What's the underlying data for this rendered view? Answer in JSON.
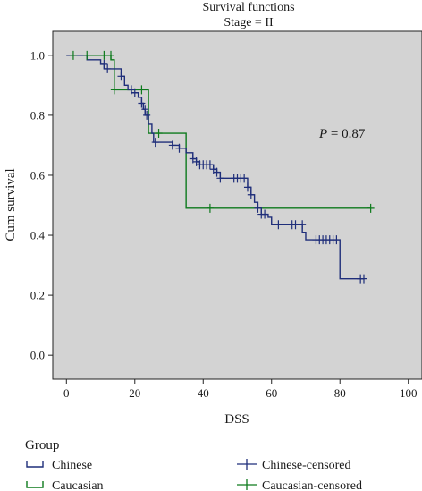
{
  "chart_data": {
    "type": "line",
    "title": "Survival functions",
    "subtitle": "Stage = II",
    "xlabel": "DSS",
    "ylabel": "Cum survival",
    "xlim": [
      -4,
      104
    ],
    "ylim": [
      -0.08,
      1.08
    ],
    "xticks": [
      0,
      20,
      40,
      60,
      80,
      100
    ],
    "yticks": [
      0.0,
      0.2,
      0.4,
      0.6,
      0.8,
      1.0
    ],
    "xtick_labels": [
      "0",
      "20",
      "40",
      "60",
      "80",
      "100"
    ],
    "ytick_labels": [
      "0.0",
      "0.2",
      "0.4",
      "0.6",
      "0.8",
      "1.0"
    ],
    "annotation": {
      "prefix": "P",
      "text": " = 0.87",
      "x": 80,
      "y": 0.87
    },
    "grid": false,
    "background": "#d3d3d3",
    "series": [
      {
        "name": "Chinese",
        "color": "#1f2e7a",
        "steps": [
          [
            0,
            1.0
          ],
          [
            6,
            0.985
          ],
          [
            10,
            0.97
          ],
          [
            11,
            0.955
          ],
          [
            16,
            0.93
          ],
          [
            17,
            0.9
          ],
          [
            18,
            0.885
          ],
          [
            19,
            0.875
          ],
          [
            21,
            0.86
          ],
          [
            22,
            0.84
          ],
          [
            22.5,
            0.82
          ],
          [
            23,
            0.8
          ],
          [
            24,
            0.77
          ],
          [
            25,
            0.74
          ],
          [
            25.5,
            0.71
          ],
          [
            31,
            0.7
          ],
          [
            33,
            0.69
          ],
          [
            35,
            0.675
          ],
          [
            37,
            0.655
          ],
          [
            38,
            0.645
          ],
          [
            39,
            0.635
          ],
          [
            43,
            0.62
          ],
          [
            44,
            0.61
          ],
          [
            45,
            0.59
          ],
          [
            53,
            0.56
          ],
          [
            54,
            0.535
          ],
          [
            55,
            0.51
          ],
          [
            56,
            0.49
          ],
          [
            57,
            0.47
          ],
          [
            59,
            0.46
          ],
          [
            60,
            0.435
          ],
          [
            69,
            0.41
          ],
          [
            70,
            0.385
          ],
          [
            80,
            0.255
          ]
        ],
        "end_x": 87
      },
      {
        "name": "Caucasian",
        "color": "#0d7a1c",
        "steps": [
          [
            0,
            1.0
          ],
          [
            13,
            0.985
          ],
          [
            14,
            0.885
          ],
          [
            24,
            0.74
          ],
          [
            35,
            0.49
          ]
        ],
        "end_x": 89
      }
    ],
    "censored": [
      {
        "name": "Chinese-censored",
        "color": "#1f2e7a",
        "points": [
          [
            11,
            0.97
          ],
          [
            12,
            0.955
          ],
          [
            16,
            0.93
          ],
          [
            19,
            0.885
          ],
          [
            20,
            0.875
          ],
          [
            22,
            0.84
          ],
          [
            23,
            0.82
          ],
          [
            23.5,
            0.8
          ],
          [
            26,
            0.71
          ],
          [
            31,
            0.7
          ],
          [
            33,
            0.69
          ],
          [
            37,
            0.655
          ],
          [
            38,
            0.645
          ],
          [
            39,
            0.635
          ],
          [
            40,
            0.635
          ],
          [
            41,
            0.635
          ],
          [
            42,
            0.635
          ],
          [
            43,
            0.62
          ],
          [
            44,
            0.61
          ],
          [
            45,
            0.59
          ],
          [
            49,
            0.59
          ],
          [
            50,
            0.59
          ],
          [
            51,
            0.59
          ],
          [
            52,
            0.59
          ],
          [
            53,
            0.56
          ],
          [
            54,
            0.535
          ],
          [
            56,
            0.49
          ],
          [
            57,
            0.47
          ],
          [
            58,
            0.47
          ],
          [
            62,
            0.435
          ],
          [
            66,
            0.435
          ],
          [
            67,
            0.435
          ],
          [
            69,
            0.435
          ],
          [
            73,
            0.385
          ],
          [
            74,
            0.385
          ],
          [
            75,
            0.385
          ],
          [
            76,
            0.385
          ],
          [
            77,
            0.385
          ],
          [
            78,
            0.385
          ],
          [
            79,
            0.385
          ],
          [
            86,
            0.255
          ],
          [
            87,
            0.255
          ]
        ]
      },
      {
        "name": "Caucasian-censored",
        "color": "#0d7a1c",
        "points": [
          [
            2,
            1.0
          ],
          [
            6,
            1.0
          ],
          [
            11,
            1.0
          ],
          [
            13,
            1.0
          ],
          [
            14,
            0.885
          ],
          [
            22,
            0.885
          ],
          [
            27,
            0.74
          ],
          [
            42,
            0.49
          ],
          [
            89,
            0.49
          ]
        ]
      }
    ]
  },
  "legend": {
    "title": "Group",
    "items": [
      {
        "label": "Chinese",
        "kind": "line",
        "color": "#1f2e7a"
      },
      {
        "label": "Chinese-censored",
        "kind": "marker",
        "color": "#1f2e7a"
      },
      {
        "label": "Caucasian",
        "kind": "line",
        "color": "#0d7a1c"
      },
      {
        "label": "Caucasian-censored",
        "kind": "marker",
        "color": "#0d7a1c"
      }
    ]
  }
}
